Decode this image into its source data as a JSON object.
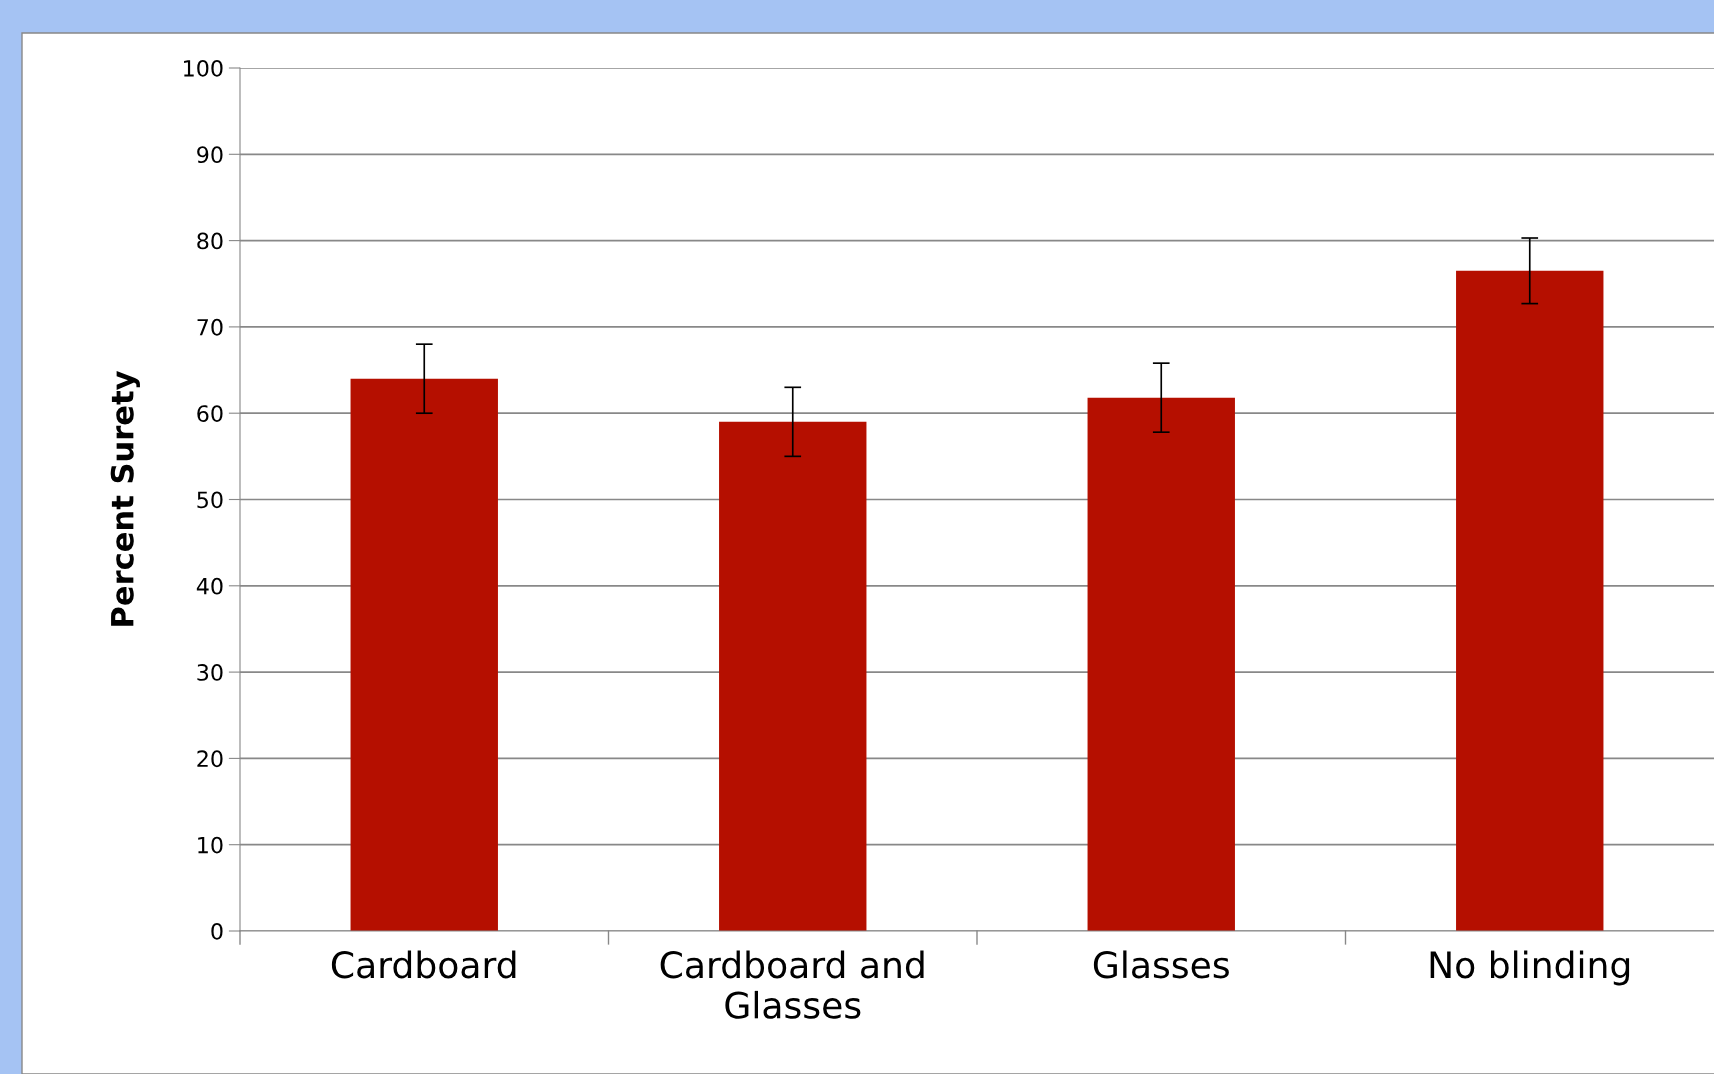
{
  "chart_data": {
    "type": "bar",
    "ylabel": "Percent Surety",
    "categories": [
      "Cardboard",
      "Cardboard and\nGlasses",
      "Glasses",
      "No blinding"
    ],
    "values": [
      64,
      59,
      61.8,
      76.5
    ],
    "errors": [
      4,
      4,
      4,
      3.8
    ],
    "color": "#b50f00",
    "ylim": [
      0,
      100
    ],
    "yticks": [
      0,
      10,
      20,
      30,
      40,
      50,
      60,
      70,
      80,
      90,
      100
    ],
    "grid": "y",
    "legend": false
  }
}
